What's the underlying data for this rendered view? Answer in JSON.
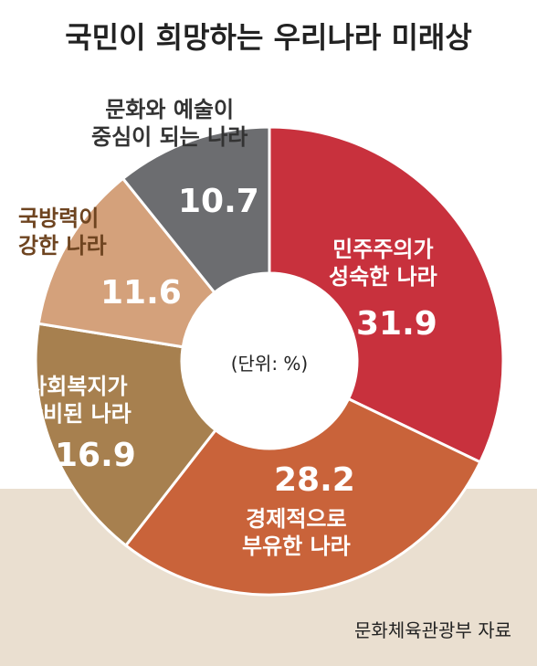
{
  "chart_data": {
    "type": "donut",
    "title": "국민이 희망하는 우리나라 미래상",
    "unit_note": "(단위: %)",
    "source": "문화체육관광부 자료",
    "categories": [
      "민주주의가\n성숙한 나라",
      "경제적으로\n부유한 나라",
      "사회복지가\n완비된 나라",
      "국방력이\n강한 나라",
      "문화와 예술이\n중심이 되는 나라"
    ],
    "values": [
      31.9,
      28.2,
      16.9,
      11.6,
      10.7
    ],
    "colors": [
      "#c8313d",
      "#c9633a",
      "#a7804f",
      "#d4a17b",
      "#6c6d70"
    ]
  }
}
